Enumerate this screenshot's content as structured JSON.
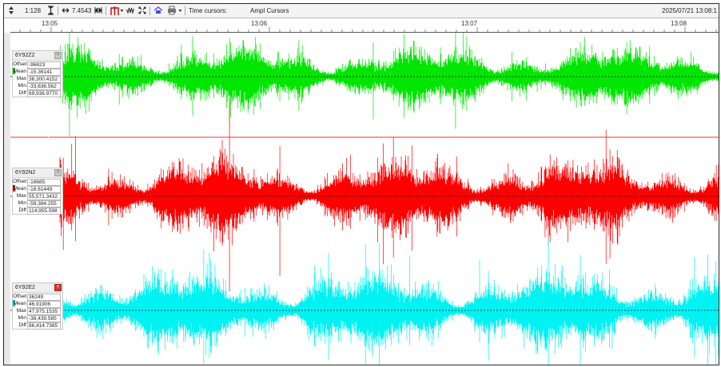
{
  "toolbar": {
    "zoom_ratio": "1:128",
    "time_span": "7.4543",
    "time_cursors_label": "Time cursors:",
    "ampl_cursors_label": "Ampl Cursors",
    "date_time": "2025/07/21 13:08:1"
  },
  "time_axis": {
    "ticks": [
      "13:05",
      "13:06",
      "13:07",
      "13:08"
    ]
  },
  "channels": [
    {
      "name": "6Y92Z2",
      "color": "#00e600",
      "offset": "-96623",
      "mean": "-15.36141",
      "max": "36,300.4152",
      "min": "-33,636.562",
      "diff": "69,936.9770",
      "close_active": false
    },
    {
      "name": "6Y92N2",
      "color": "#ff0000",
      "offset": "-16685",
      "mean": "-18.61449",
      "max": "55,571.3432",
      "min": "-59,384.255",
      "diff": "114,955.598",
      "close_active": false
    },
    {
      "name": "6Y92E2",
      "color": "#00f2f2",
      "offset": "36249",
      "mean": "46.91906",
      "max": "47,975.1535",
      "min": "-38,439.585",
      "diff": "86,414.7385",
      "close_active": true
    }
  ],
  "labels": {
    "offset": "Offset",
    "mean": "Mean",
    "max": "Max",
    "min": "Min",
    "diff": "Diff",
    "close_glyph": "×"
  },
  "icons": [
    "scroll-updown-icon",
    "zoom-vertical-icon",
    "zoom-horizontal-icon",
    "pick-icon",
    "wave-icon",
    "fit-icon",
    "color-icon",
    "print-icon",
    "dropdown-icon"
  ]
}
